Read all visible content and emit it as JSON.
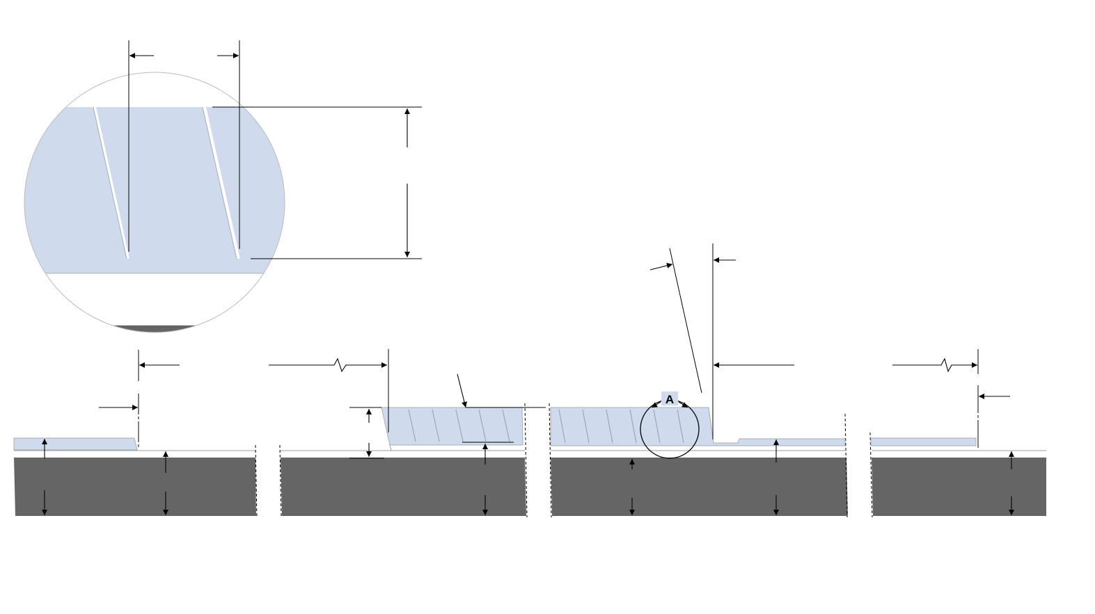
{
  "detail": {
    "callout_label": "A"
  },
  "colors": {
    "coating": "#cfdaed",
    "substrate": "#656565",
    "line": "#000000",
    "outline": "#a9adb3"
  },
  "icons": {
    "arrowhead": "filled-triangle"
  }
}
